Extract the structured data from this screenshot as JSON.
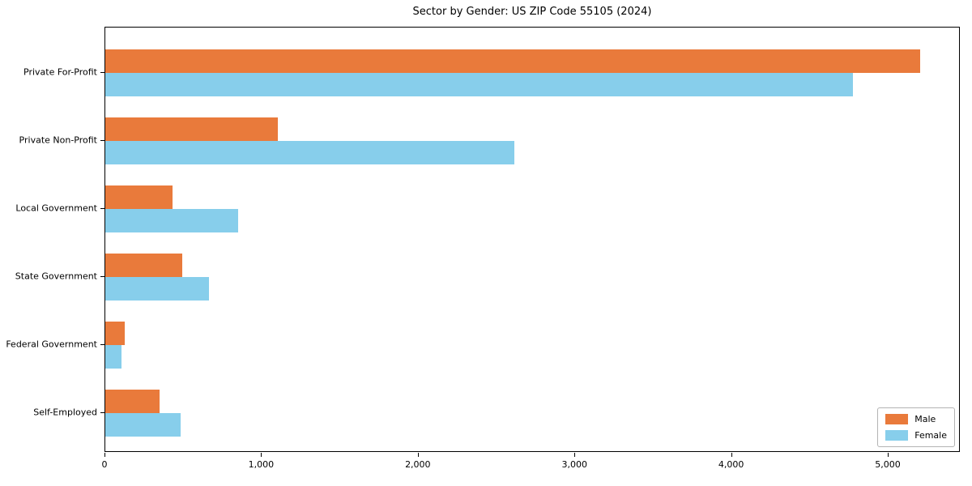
{
  "chart_data": {
    "type": "bar",
    "orientation": "horizontal",
    "title": "Sector by Gender: US ZIP Code 55105 (2024)",
    "categories": [
      "Private For-Profit",
      "Private Non-Profit",
      "Local Government",
      "State Government",
      "Federal Government",
      "Self-Employed"
    ],
    "series": [
      {
        "name": "Male",
        "color": "#E97A3B",
        "values": [
          5200,
          1100,
          430,
          490,
          125,
          345
        ]
      },
      {
        "name": "Female",
        "color": "#87CEEB",
        "values": [
          4770,
          2610,
          850,
          660,
          105,
          480
        ]
      }
    ],
    "xlabel": "",
    "ylabel": "",
    "xlim": [
      0,
      5460
    ],
    "xticks": [
      0,
      1000,
      2000,
      3000,
      4000,
      5000
    ],
    "xtick_labels": [
      "0",
      "1,000",
      "2,000",
      "3,000",
      "4,000",
      "5,000"
    ],
    "grid": false,
    "legend_position": "lower right"
  },
  "colors": {
    "background": "#FFFFFF",
    "male": "#E97A3B",
    "female": "#87CEEB",
    "axis": "#000000",
    "text": "#000000",
    "legend_border": "#B3B3B3"
  }
}
